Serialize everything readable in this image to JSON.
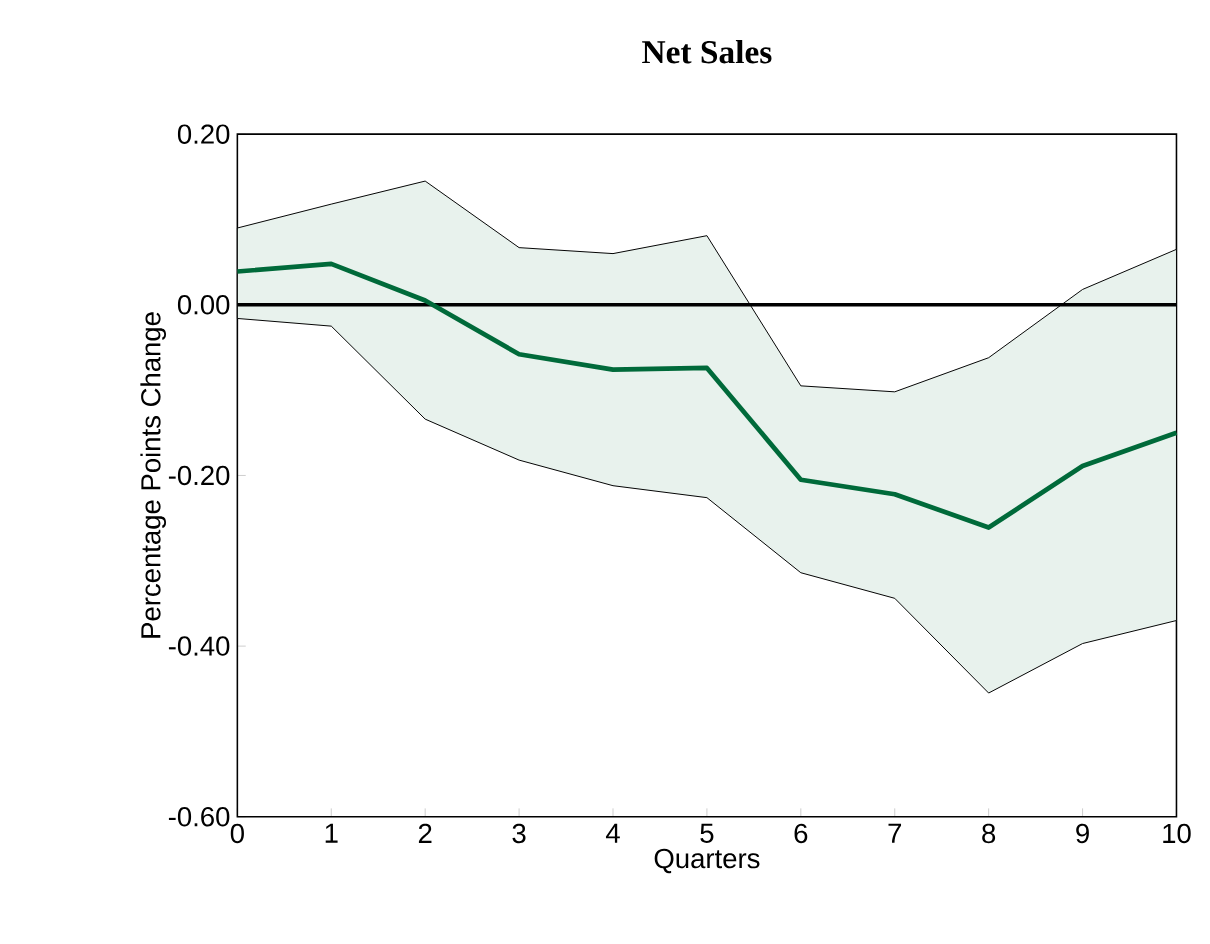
{
  "chart_data": {
    "type": "line",
    "title": "Net Sales",
    "xlabel": "Quarters",
    "ylabel": "Percentage Points Change",
    "x": [
      0,
      1,
      2,
      3,
      4,
      5,
      6,
      7,
      8,
      9,
      10
    ],
    "series": [
      {
        "color": "#006a3a",
        "values": [
          0.039,
          0.048,
          0.005,
          -0.058,
          -0.076,
          -0.074,
          -0.205,
          -0.222,
          -0.261,
          -0.189,
          -0.15
        ],
        "lower": [
          -0.016,
          -0.025,
          -0.134,
          -0.182,
          -0.212,
          -0.226,
          -0.314,
          -0.344,
          -0.455,
          -0.397,
          -0.37
        ],
        "upper": [
          0.09,
          0.118,
          0.145,
          0.067,
          0.06,
          0.081,
          -0.095,
          -0.102,
          -0.062,
          0.018,
          0.065
        ]
      }
    ],
    "ref_lines": [
      {
        "axis": "y",
        "value": 0,
        "color": "#000000"
      }
    ],
    "xlim": [
      0,
      10
    ],
    "ylim": [
      -0.6,
      0.2
    ],
    "xticks": [
      0,
      1,
      2,
      3,
      4,
      5,
      6,
      7,
      8,
      9,
      10
    ],
    "yticks": [
      {
        "value": -0.6,
        "label": "-0.60"
      },
      {
        "value": -0.4,
        "label": "-0.40"
      },
      {
        "value": -0.2,
        "label": "-0.20"
      },
      {
        "value": 0,
        "label": "0.00"
      },
      {
        "value": 0.2,
        "label": "0.20"
      }
    ],
    "marker": "none",
    "line_style": "solid"
  }
}
